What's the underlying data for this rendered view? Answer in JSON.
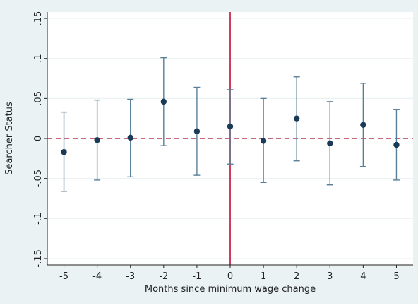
{
  "chart_data": {
    "type": "scatter",
    "subtype": "coefficient plot with 95% confidence intervals",
    "xlabel": "Months since minimum wage change",
    "ylabel": "Searcher Status",
    "x_ticks": [
      "-5",
      "-4",
      "-3",
      "-2",
      "-1",
      "0",
      "1",
      "2",
      "3",
      "4",
      "5"
    ],
    "y_ticks": [
      ".15",
      ".1",
      ".05",
      "0",
      "-.05",
      "-.1",
      "-.15"
    ],
    "xlim": [
      -5.5,
      5.5
    ],
    "ylim": [
      -0.158,
      0.158
    ],
    "grid": "horizontal",
    "reference_lines": [
      {
        "axis": "y",
        "value": 0,
        "style": "dashed",
        "color": "#b03a50"
      },
      {
        "axis": "x",
        "value": 0,
        "style": "solid",
        "color": "#c8284a"
      }
    ],
    "points": [
      {
        "x": -5,
        "estimate": -0.017,
        "ci_low": -0.066,
        "ci_high": 0.033
      },
      {
        "x": -4,
        "estimate": -0.002,
        "ci_low": -0.052,
        "ci_high": 0.048
      },
      {
        "x": -3,
        "estimate": 0.001,
        "ci_low": -0.048,
        "ci_high": 0.049
      },
      {
        "x": -2,
        "estimate": 0.046,
        "ci_low": -0.009,
        "ci_high": 0.101
      },
      {
        "x": -1,
        "estimate": 0.009,
        "ci_low": -0.046,
        "ci_high": 0.064
      },
      {
        "x": 0,
        "estimate": 0.015,
        "ci_low": -0.032,
        "ci_high": 0.061
      },
      {
        "x": 1,
        "estimate": -0.003,
        "ci_low": -0.055,
        "ci_high": 0.05
      },
      {
        "x": 2,
        "estimate": 0.025,
        "ci_low": -0.028,
        "ci_high": 0.077
      },
      {
        "x": 3,
        "estimate": -0.006,
        "ci_low": -0.058,
        "ci_high": 0.046
      },
      {
        "x": 4,
        "estimate": 0.017,
        "ci_low": -0.035,
        "ci_high": 0.069
      },
      {
        "x": 5,
        "estimate": -0.008,
        "ci_low": -0.052,
        "ci_high": 0.036
      }
    ],
    "colors": {
      "marker": "#1a3a57",
      "ci_bar": "#587f98",
      "zero_line": "#b03a50",
      "event_line": "#c8284a",
      "gridline": "#eaf2f3",
      "plot_background": "#ffffff",
      "figure_background": "#eaf2f3"
    }
  }
}
